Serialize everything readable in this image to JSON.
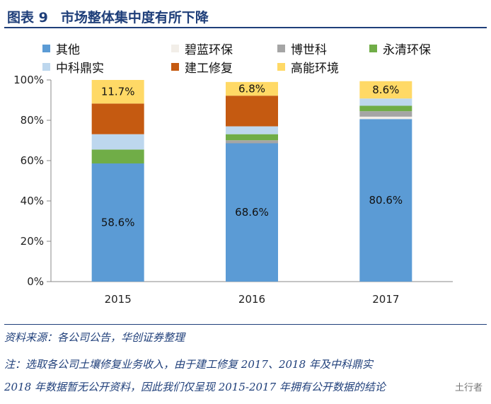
{
  "header": {
    "figure_label": "图表 9",
    "title": "市场整体集中度有所下降"
  },
  "colors": {
    "title": "#1f3f7a",
    "其他": "#5b9bd5",
    "碧蓝环保": "#f2eee8",
    "博世科": "#a5a5a5",
    "永清环保": "#70ad47",
    "中科鼎实": "#bdd7ee",
    "建工修复": "#c55a11",
    "高能环境": "#ffd966"
  },
  "chart_data": {
    "type": "bar",
    "stacked": true,
    "categories": [
      "2015",
      "2016",
      "2017"
    ],
    "ylim": [
      0,
      100
    ],
    "yticks": [
      "0%",
      "20%",
      "40%",
      "60%",
      "80%",
      "100%"
    ],
    "legend_position": "top",
    "series": [
      {
        "name": "其他",
        "values": [
          58.6,
          68.6,
          80.6
        ]
      },
      {
        "name": "碧蓝环保",
        "values": [
          0,
          0,
          1.2
        ]
      },
      {
        "name": "博世科",
        "values": [
          0,
          1.5,
          2.7
        ]
      },
      {
        "name": "永清环保",
        "values": [
          6.9,
          3.0,
          2.7
        ]
      },
      {
        "name": "中科鼎实",
        "values": [
          7.6,
          3.9,
          3.6
        ]
      },
      {
        "name": "建工修复",
        "values": [
          15.2,
          15.2,
          0
        ]
      },
      {
        "name": "高能环境",
        "values": [
          11.7,
          6.8,
          8.6
        ]
      }
    ],
    "data_labels": [
      {
        "series": "其他",
        "category": "2015",
        "text": "58.6%"
      },
      {
        "series": "其他",
        "category": "2016",
        "text": "68.6%"
      },
      {
        "series": "其他",
        "category": "2017",
        "text": "80.6%"
      },
      {
        "series": "高能环境",
        "category": "2015",
        "text": "11.7%"
      },
      {
        "series": "高能环境",
        "category": "2016",
        "text": "6.8%"
      },
      {
        "series": "高能环境",
        "category": "2017",
        "text": "8.6%"
      }
    ]
  },
  "footer": {
    "source": "资料来源：各公司公告，华创证券整理",
    "note_line1": "注：选取各公司土壤修复业务收入，由于建工修复 2017、2018 年及中科鼎实",
    "note_line2": "2018 年数据暂无公开资料，因此我们仅呈现 2015-2017 年拥有公开数据的结论",
    "watermark": "土行者"
  }
}
